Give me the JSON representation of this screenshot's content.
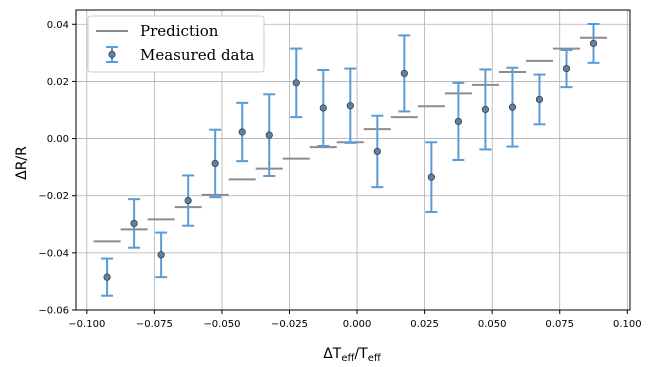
{
  "chart_data": {
    "type": "scatter",
    "xlabel_html": {
      "base": "ΔT",
      "sub1": "eff",
      "mid": "/T",
      "sub2": "eff"
    },
    "ylabel": "ΔR/R",
    "xlim": [
      -0.104,
      0.101
    ],
    "ylim": [
      -0.06,
      0.045
    ],
    "grid": true,
    "legend_position": "top-left",
    "x_ticks": [
      -0.1,
      -0.075,
      -0.05,
      -0.025,
      0.0,
      0.025,
      0.05,
      0.075,
      0.1
    ],
    "x_tick_labels": [
      "−0.100",
      "−0.075",
      "−0.050",
      "−0.025",
      "0.000",
      "0.025",
      "0.050",
      "0.075",
      "0.100"
    ],
    "y_ticks": [
      -0.06,
      -0.04,
      -0.02,
      0.0,
      0.02,
      0.04
    ],
    "y_tick_labels": [
      "−0.06",
      "−0.04",
      "−0.02",
      "0.00",
      "0.02",
      "0.04"
    ],
    "colors": {
      "prediction": "#8c8c8c",
      "errorbar": "#5b9bd5",
      "marker_fill": "#6b7f99",
      "marker_edge": "#2f3f55",
      "grid": "#b0b0b0"
    },
    "series": [
      {
        "name": "Prediction",
        "kind": "step",
        "points": [
          {
            "x": -0.0925,
            "y": -0.036
          },
          {
            "x": -0.0825,
            "y": -0.0318
          },
          {
            "x": -0.0725,
            "y": -0.0283
          },
          {
            "x": -0.0625,
            "y": -0.024
          },
          {
            "x": -0.0525,
            "y": -0.0197
          },
          {
            "x": -0.0425,
            "y": -0.0143
          },
          {
            "x": -0.0325,
            "y": -0.0105
          },
          {
            "x": -0.0225,
            "y": -0.007
          },
          {
            "x": -0.0125,
            "y": -0.003
          },
          {
            "x": -0.0025,
            "y": -0.0013
          },
          {
            "x": 0.0075,
            "y": 0.0033
          },
          {
            "x": 0.0175,
            "y": 0.0075
          },
          {
            "x": 0.0275,
            "y": 0.0113
          },
          {
            "x": 0.0375,
            "y": 0.0158
          },
          {
            "x": 0.0475,
            "y": 0.0188
          },
          {
            "x": 0.0575,
            "y": 0.0233
          },
          {
            "x": 0.0675,
            "y": 0.0272
          },
          {
            "x": 0.0775,
            "y": 0.0315
          },
          {
            "x": 0.0875,
            "y": 0.0353
          }
        ]
      },
      {
        "name": "Measured data",
        "kind": "errorbar",
        "points": [
          {
            "x": -0.0925,
            "y": -0.0485,
            "err": 0.0065
          },
          {
            "x": -0.0825,
            "y": -0.0297,
            "err": 0.0085
          },
          {
            "x": -0.0725,
            "y": -0.0407,
            "err": 0.0078
          },
          {
            "x": -0.0625,
            "y": -0.0217,
            "err": 0.0088
          },
          {
            "x": -0.0525,
            "y": -0.0087,
            "err": 0.0118
          },
          {
            "x": -0.0425,
            "y": 0.0023,
            "err": 0.0102
          },
          {
            "x": -0.0325,
            "y": 0.0012,
            "err": 0.0143
          },
          {
            "x": -0.0225,
            "y": 0.0195,
            "err": 0.012
          },
          {
            "x": -0.0125,
            "y": 0.0107,
            "err": 0.0133
          },
          {
            "x": -0.0025,
            "y": 0.0115,
            "err": 0.013
          },
          {
            "x": 0.0075,
            "y": -0.0045,
            "err": 0.0125
          },
          {
            "x": 0.0175,
            "y": 0.0228,
            "err": 0.0133
          },
          {
            "x": 0.0275,
            "y": -0.0135,
            "err": 0.0122
          },
          {
            "x": 0.0375,
            "y": 0.006,
            "err": 0.0135
          },
          {
            "x": 0.0475,
            "y": 0.0102,
            "err": 0.014
          },
          {
            "x": 0.0575,
            "y": 0.011,
            "err": 0.0138
          },
          {
            "x": 0.0675,
            "y": 0.0137,
            "err": 0.0087
          },
          {
            "x": 0.0775,
            "y": 0.0245,
            "err": 0.0065
          },
          {
            "x": 0.0875,
            "y": 0.0333,
            "err": 0.0068
          }
        ]
      }
    ],
    "step_half_width": 0.005
  }
}
